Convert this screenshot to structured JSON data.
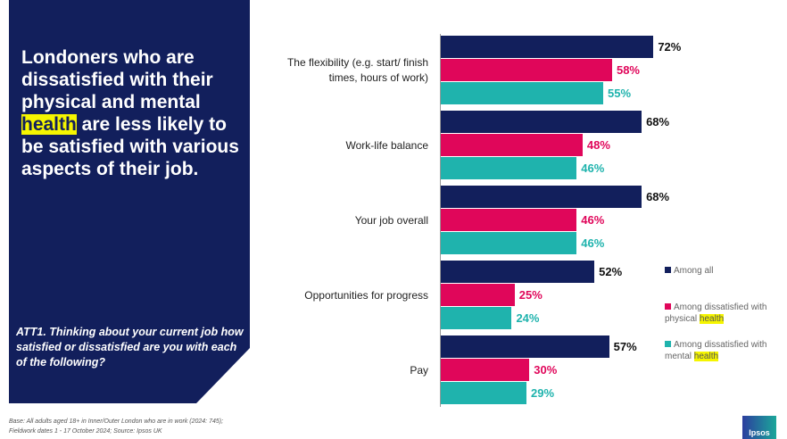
{
  "title": {
    "pre": "Londoners who are dissatisfied with their physical and mental ",
    "highlight": "health",
    "post": " are less likely to be satisfied with various aspects of their job."
  },
  "question": "ATT1. Thinking about your current job how satisfied or dissatisfied are you with each of the following?",
  "base_note": "Base: All adults aged 18+ in Inner/Outer London who are in work (2024: 745); Fieldwork dates 1 - 17 October 2024; Source: Ipsos UK",
  "logo": "Ipsos",
  "chart_data": {
    "type": "bar",
    "orientation": "horizontal",
    "categories": [
      "The flexibility (e.g. start/ finish times, hours of work)",
      "Work-life balance",
      "Your job overall",
      "Opportunities for progress",
      "Pay"
    ],
    "series": [
      {
        "name": "Among all",
        "legend_pre": "Among all",
        "legend_hl": "",
        "color": "#121f5c",
        "values": [
          72,
          68,
          68,
          52,
          57
        ]
      },
      {
        "name": "Among dissatisfied with physical health",
        "legend_pre": "Among dissatisfied with physical ",
        "legend_hl": "health",
        "color": "#e0065a",
        "values": [
          58,
          48,
          46,
          25,
          30
        ]
      },
      {
        "name": "Among dissatisfied with mental health",
        "legend_pre": "Among dissatisfied with mental ",
        "legend_hl": "health",
        "color": "#1fb3ad",
        "values": [
          55,
          46,
          46,
          24,
          29
        ]
      }
    ],
    "unit": "%",
    "xlim": [
      0,
      100
    ],
    "legend": "right"
  }
}
